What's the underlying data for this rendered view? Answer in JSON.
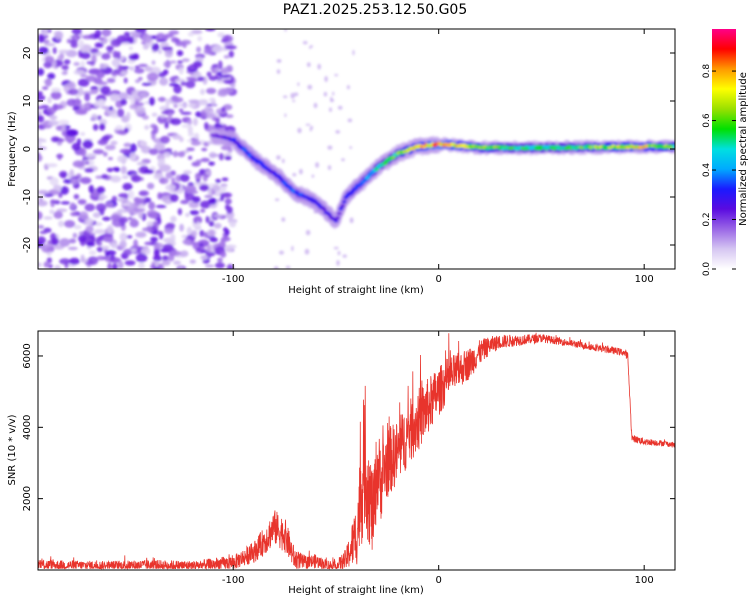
{
  "figure": {
    "title": "PAZ1.2025.253.12.50.G05"
  },
  "chart_data": [
    {
      "type": "heatmap",
      "title": "PAZ1.2025.253.12.50.G05",
      "xlabel": "Height of straight line (km)",
      "ylabel": "Frequency (Hz)",
      "xlim": [
        -195,
        115
      ],
      "ylim": [
        -25,
        25
      ],
      "xticks": [
        -100,
        0,
        100
      ],
      "yticks": [
        20,
        10,
        0,
        -10,
        -20
      ],
      "colorbar": {
        "label": "Normalized spectral amplitude",
        "range": [
          0.0,
          0.97
        ],
        "ticks": [
          "0.0",
          "0.2",
          "0.4",
          "0.6",
          "0.8"
        ],
        "colormap": [
          "#ffffff",
          "#d6c6f2",
          "#9a66e6",
          "#5a0be0",
          "#1a1aff",
          "#00aaff",
          "#00e0e0",
          "#00e000",
          "#9ae000",
          "#ffff00",
          "#ff9900",
          "#ff0000",
          "#ff0088"
        ]
      },
      "ridge": {
        "x": [
          -110,
          -100,
          -90,
          -80,
          -70,
          -60,
          -50,
          -45,
          -40,
          -30,
          -20,
          -10,
          0,
          10,
          20,
          40,
          60,
          80,
          100,
          115
        ],
        "y": [
          3,
          2,
          -2,
          -5,
          -9,
          -11,
          -15,
          -10,
          -8,
          -4,
          -1,
          0.5,
          1,
          0.7,
          0.3,
          0.2,
          0.3,
          0.4,
          0.5,
          0.5
        ],
        "amplitude": [
          0.2,
          0.3,
          0.35,
          0.3,
          0.35,
          0.3,
          0.25,
          0.3,
          0.35,
          0.5,
          0.6,
          0.75,
          0.85,
          0.75,
          0.65,
          0.55,
          0.55,
          0.65,
          0.75,
          0.6
        ]
      },
      "noise_region": {
        "x_range": [
          -195,
          -100
        ],
        "y_range": [
          -25,
          25
        ],
        "amplitude": 0.2
      }
    },
    {
      "type": "line",
      "title": "",
      "xlabel": "Height of straight line (km)",
      "ylabel": "SNR (10 * v/v)",
      "xlim": [
        -195,
        115
      ],
      "ylim": [
        0,
        6700
      ],
      "xticks": [
        -100,
        0,
        100
      ],
      "yticks": [
        2000,
        4000,
        6000
      ],
      "color": "#e8342c",
      "series": [
        {
          "name": "SNR",
          "x": [
            -195,
            -180,
            -160,
            -140,
            -120,
            -100,
            -95,
            -90,
            -85,
            -80,
            -75,
            -70,
            -65,
            -60,
            -55,
            -50,
            -45,
            -40,
            -38,
            -36,
            -34,
            -32,
            -30,
            -28,
            -25,
            -20,
            -15,
            -10,
            -5,
            0,
            5,
            10,
            15,
            20,
            25,
            30,
            40,
            50,
            60,
            70,
            80,
            90,
            92,
            94,
            100,
            110,
            115
          ],
          "y": [
            150,
            130,
            120,
            140,
            120,
            200,
            350,
            500,
            800,
            1200,
            1000,
            300,
            200,
            250,
            150,
            100,
            300,
            1000,
            2000,
            3000,
            2200,
            1500,
            2800,
            2500,
            3000,
            3300,
            3800,
            4200,
            4600,
            5000,
            5400,
            5600,
            5800,
            6100,
            6300,
            6400,
            6450,
            6500,
            6400,
            6300,
            6200,
            6100,
            6000,
            3700,
            3600,
            3550,
            3500
          ],
          "noise_amplitude": [
            150,
            140,
            130,
            150,
            140,
            200,
            250,
            300,
            400,
            500,
            500,
            300,
            200,
            200,
            150,
            150,
            300,
            900,
            1500,
            1800,
            1500,
            1200,
            1200,
            1100,
            1000,
            900,
            900,
            900,
            800,
            700,
            600,
            500,
            450,
            350,
            250,
            200,
            150,
            120,
            100,
            100,
            100,
            100,
            120,
            100,
            100,
            80,
            80
          ]
        }
      ]
    }
  ]
}
